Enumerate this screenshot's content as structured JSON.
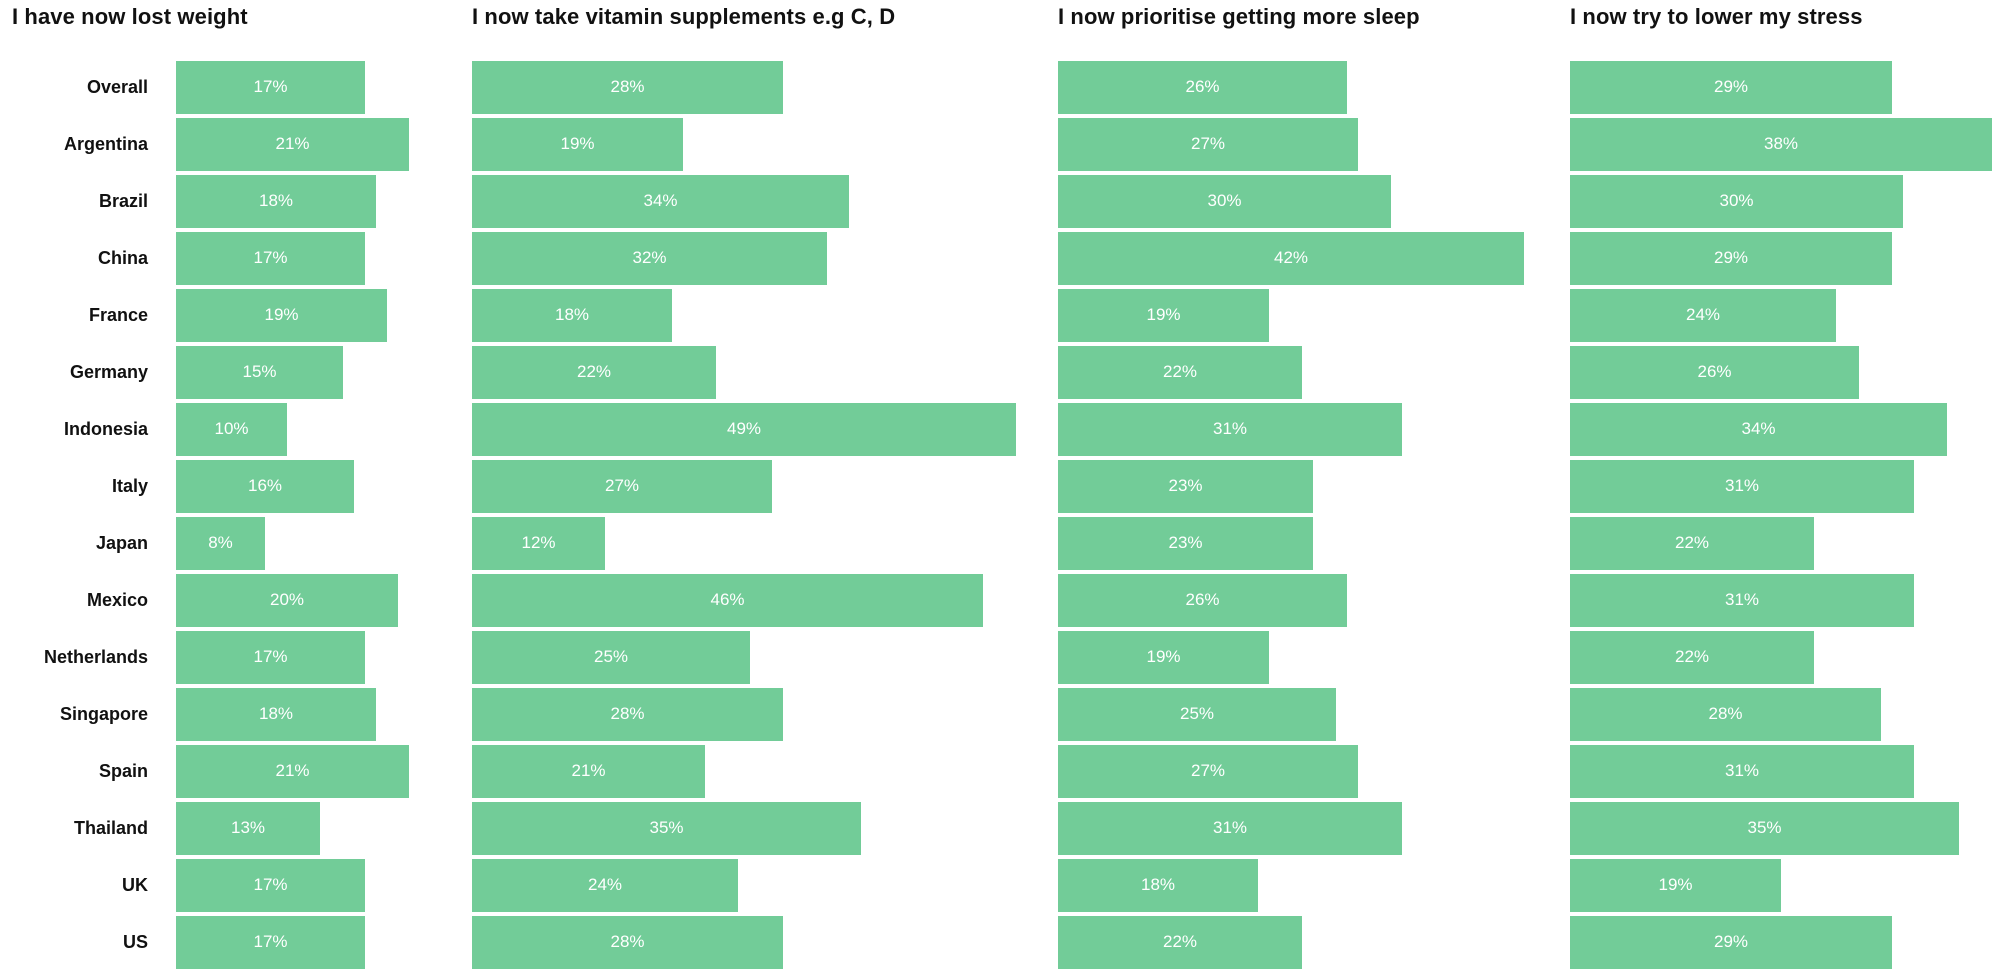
{
  "colors": {
    "bar": "#72cc98",
    "bar_label": "#ffffff",
    "text": "#111111"
  },
  "chart_data": [
    {
      "type": "bar",
      "orientation": "horizontal",
      "title": "I have now lost weight",
      "categories": [
        "Overall",
        "Argentina",
        "Brazil",
        "China",
        "France",
        "Germany",
        "Indonesia",
        "Italy",
        "Japan",
        "Mexico",
        "Netherlands",
        "Singapore",
        "Spain",
        "Thailand",
        "UK",
        "US"
      ],
      "values": [
        17,
        21,
        18,
        17,
        19,
        15,
        10,
        16,
        8,
        20,
        17,
        18,
        21,
        13,
        17,
        17
      ],
      "value_suffix": "%",
      "xlim": [
        0,
        100
      ]
    },
    {
      "type": "bar",
      "orientation": "horizontal",
      "title": "I now take vitamin supplements e.g C, D",
      "categories": [
        "Overall",
        "Argentina",
        "Brazil",
        "China",
        "France",
        "Germany",
        "Indonesia",
        "Italy",
        "Japan",
        "Mexico",
        "Netherlands",
        "Singapore",
        "Spain",
        "Thailand",
        "UK",
        "US"
      ],
      "values": [
        28,
        19,
        34,
        32,
        18,
        22,
        49,
        27,
        12,
        46,
        25,
        28,
        21,
        35,
        24,
        28
      ],
      "value_suffix": "%",
      "xlim": [
        0,
        100
      ]
    },
    {
      "type": "bar",
      "orientation": "horizontal",
      "title": "I now prioritise getting more sleep",
      "categories": [
        "Overall",
        "Argentina",
        "Brazil",
        "China",
        "France",
        "Germany",
        "Indonesia",
        "Italy",
        "Japan",
        "Mexico",
        "Netherlands",
        "Singapore",
        "Spain",
        "Thailand",
        "UK",
        "US"
      ],
      "values": [
        26,
        27,
        30,
        42,
        19,
        22,
        31,
        23,
        23,
        26,
        19,
        25,
        27,
        31,
        18,
        22
      ],
      "value_suffix": "%",
      "xlim": [
        0,
        100
      ]
    },
    {
      "type": "bar",
      "orientation": "horizontal",
      "title": "I now try to lower my stress",
      "categories": [
        "Overall",
        "Argentina",
        "Brazil",
        "China",
        "France",
        "Germany",
        "Indonesia",
        "Italy",
        "Japan",
        "Mexico",
        "Netherlands",
        "Singapore",
        "Spain",
        "Thailand",
        "UK",
        "US"
      ],
      "values": [
        29,
        38,
        30,
        29,
        24,
        26,
        34,
        31,
        22,
        31,
        22,
        28,
        31,
        35,
        19,
        29
      ],
      "value_suffix": "%",
      "xlim": [
        0,
        100
      ]
    }
  ]
}
